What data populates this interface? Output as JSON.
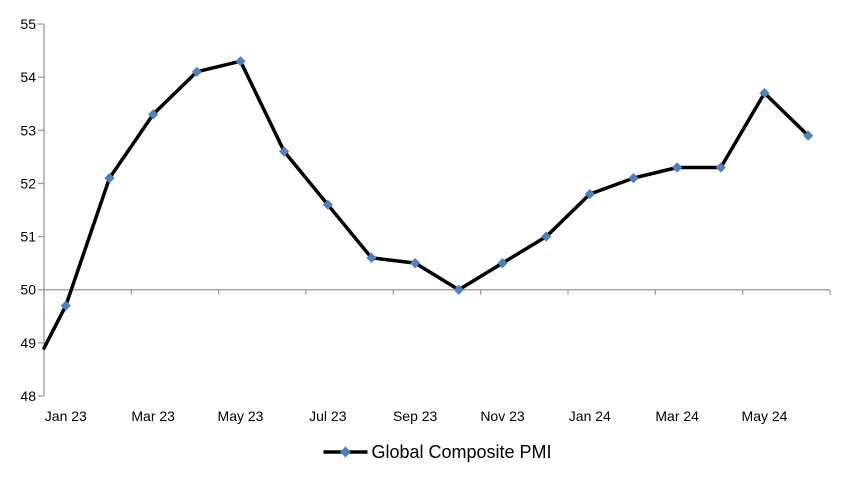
{
  "chart_data": {
    "type": "line",
    "title": "",
    "categories": [
      "Jan 23",
      "Feb 23",
      "Mar 23",
      "Apr 23",
      "May 23",
      "Jun 23",
      "Jul 23",
      "Aug 23",
      "Sep 23",
      "Oct 23",
      "Nov 23",
      "Dec 23",
      "Jan 24",
      "Feb 24",
      "Mar 24",
      "Apr 24",
      "May 24",
      "Jun 24"
    ],
    "series": [
      {
        "name": "Global Composite PMI",
        "values": [
          49.7,
          52.1,
          53.3,
          54.1,
          54.3,
          52.6,
          51.6,
          50.6,
          50.5,
          50.0,
          50.5,
          51.0,
          51.8,
          52.1,
          52.3,
          52.3,
          53.7,
          52.9
        ],
        "line_color": "#000000",
        "marker_shape": "diamond",
        "marker_color": "#4F81BD"
      }
    ],
    "line_enters_left_edge_at": 48.9,
    "ylim": [
      48,
      55
    ],
    "ytick_step": 1,
    "y_tick_labels": [
      "48",
      "49",
      "50",
      "51",
      "52",
      "53",
      "54",
      "55"
    ],
    "x_tick_labels": [
      "Jan 23",
      "Mar 23",
      "May 23",
      "Jul 23",
      "Sep 23",
      "Nov 23",
      "Jan 24",
      "Mar 24",
      "May 24"
    ],
    "x_label_every": 2,
    "category_axis_crosses_at": 50,
    "grid": "off",
    "legend_position": "bottom-center",
    "colors": {
      "axis": "#9A9A9A",
      "text": "#000000",
      "series_line": "#000000",
      "marker_fill": "#4F81BD",
      "background": "#FFFFFF"
    }
  }
}
